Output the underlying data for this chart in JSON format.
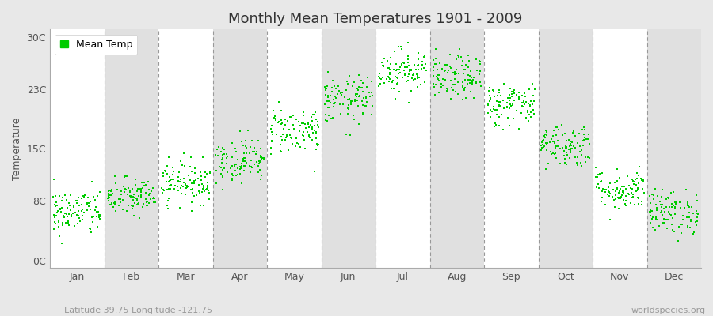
{
  "title": "Monthly Mean Temperatures 1901 - 2009",
  "ylabel": "Temperature",
  "subtitle_left": "Latitude 39.75 Longitude -121.75",
  "subtitle_right": "worldspecies.org",
  "ytick_labels": [
    "0C",
    "8C",
    "15C",
    "23C",
    "30C"
  ],
  "ytick_values": [
    0,
    8,
    15,
    23,
    30
  ],
  "ylim": [
    -1,
    31
  ],
  "months": [
    "Jan",
    "Feb",
    "Mar",
    "Apr",
    "May",
    "Jun",
    "Jul",
    "Aug",
    "Sep",
    "Oct",
    "Nov",
    "Dec"
  ],
  "dot_color": "#00cc00",
  "background_color": "#e8e8e8",
  "plot_bg_white": "#ffffff",
  "plot_bg_gray": "#e0e0e0",
  "n_years": 109,
  "mean_temps": [
    6.5,
    8.5,
    10.5,
    13.5,
    17.5,
    21.5,
    25.5,
    24.5,
    21.0,
    15.5,
    9.5,
    6.5
  ],
  "std_temps": [
    1.6,
    1.3,
    1.4,
    1.5,
    1.6,
    1.6,
    1.5,
    1.5,
    1.5,
    1.5,
    1.4,
    1.5
  ],
  "title_fontsize": 13,
  "axis_fontsize": 9,
  "legend_fontsize": 9,
  "dot_size": 2.5
}
